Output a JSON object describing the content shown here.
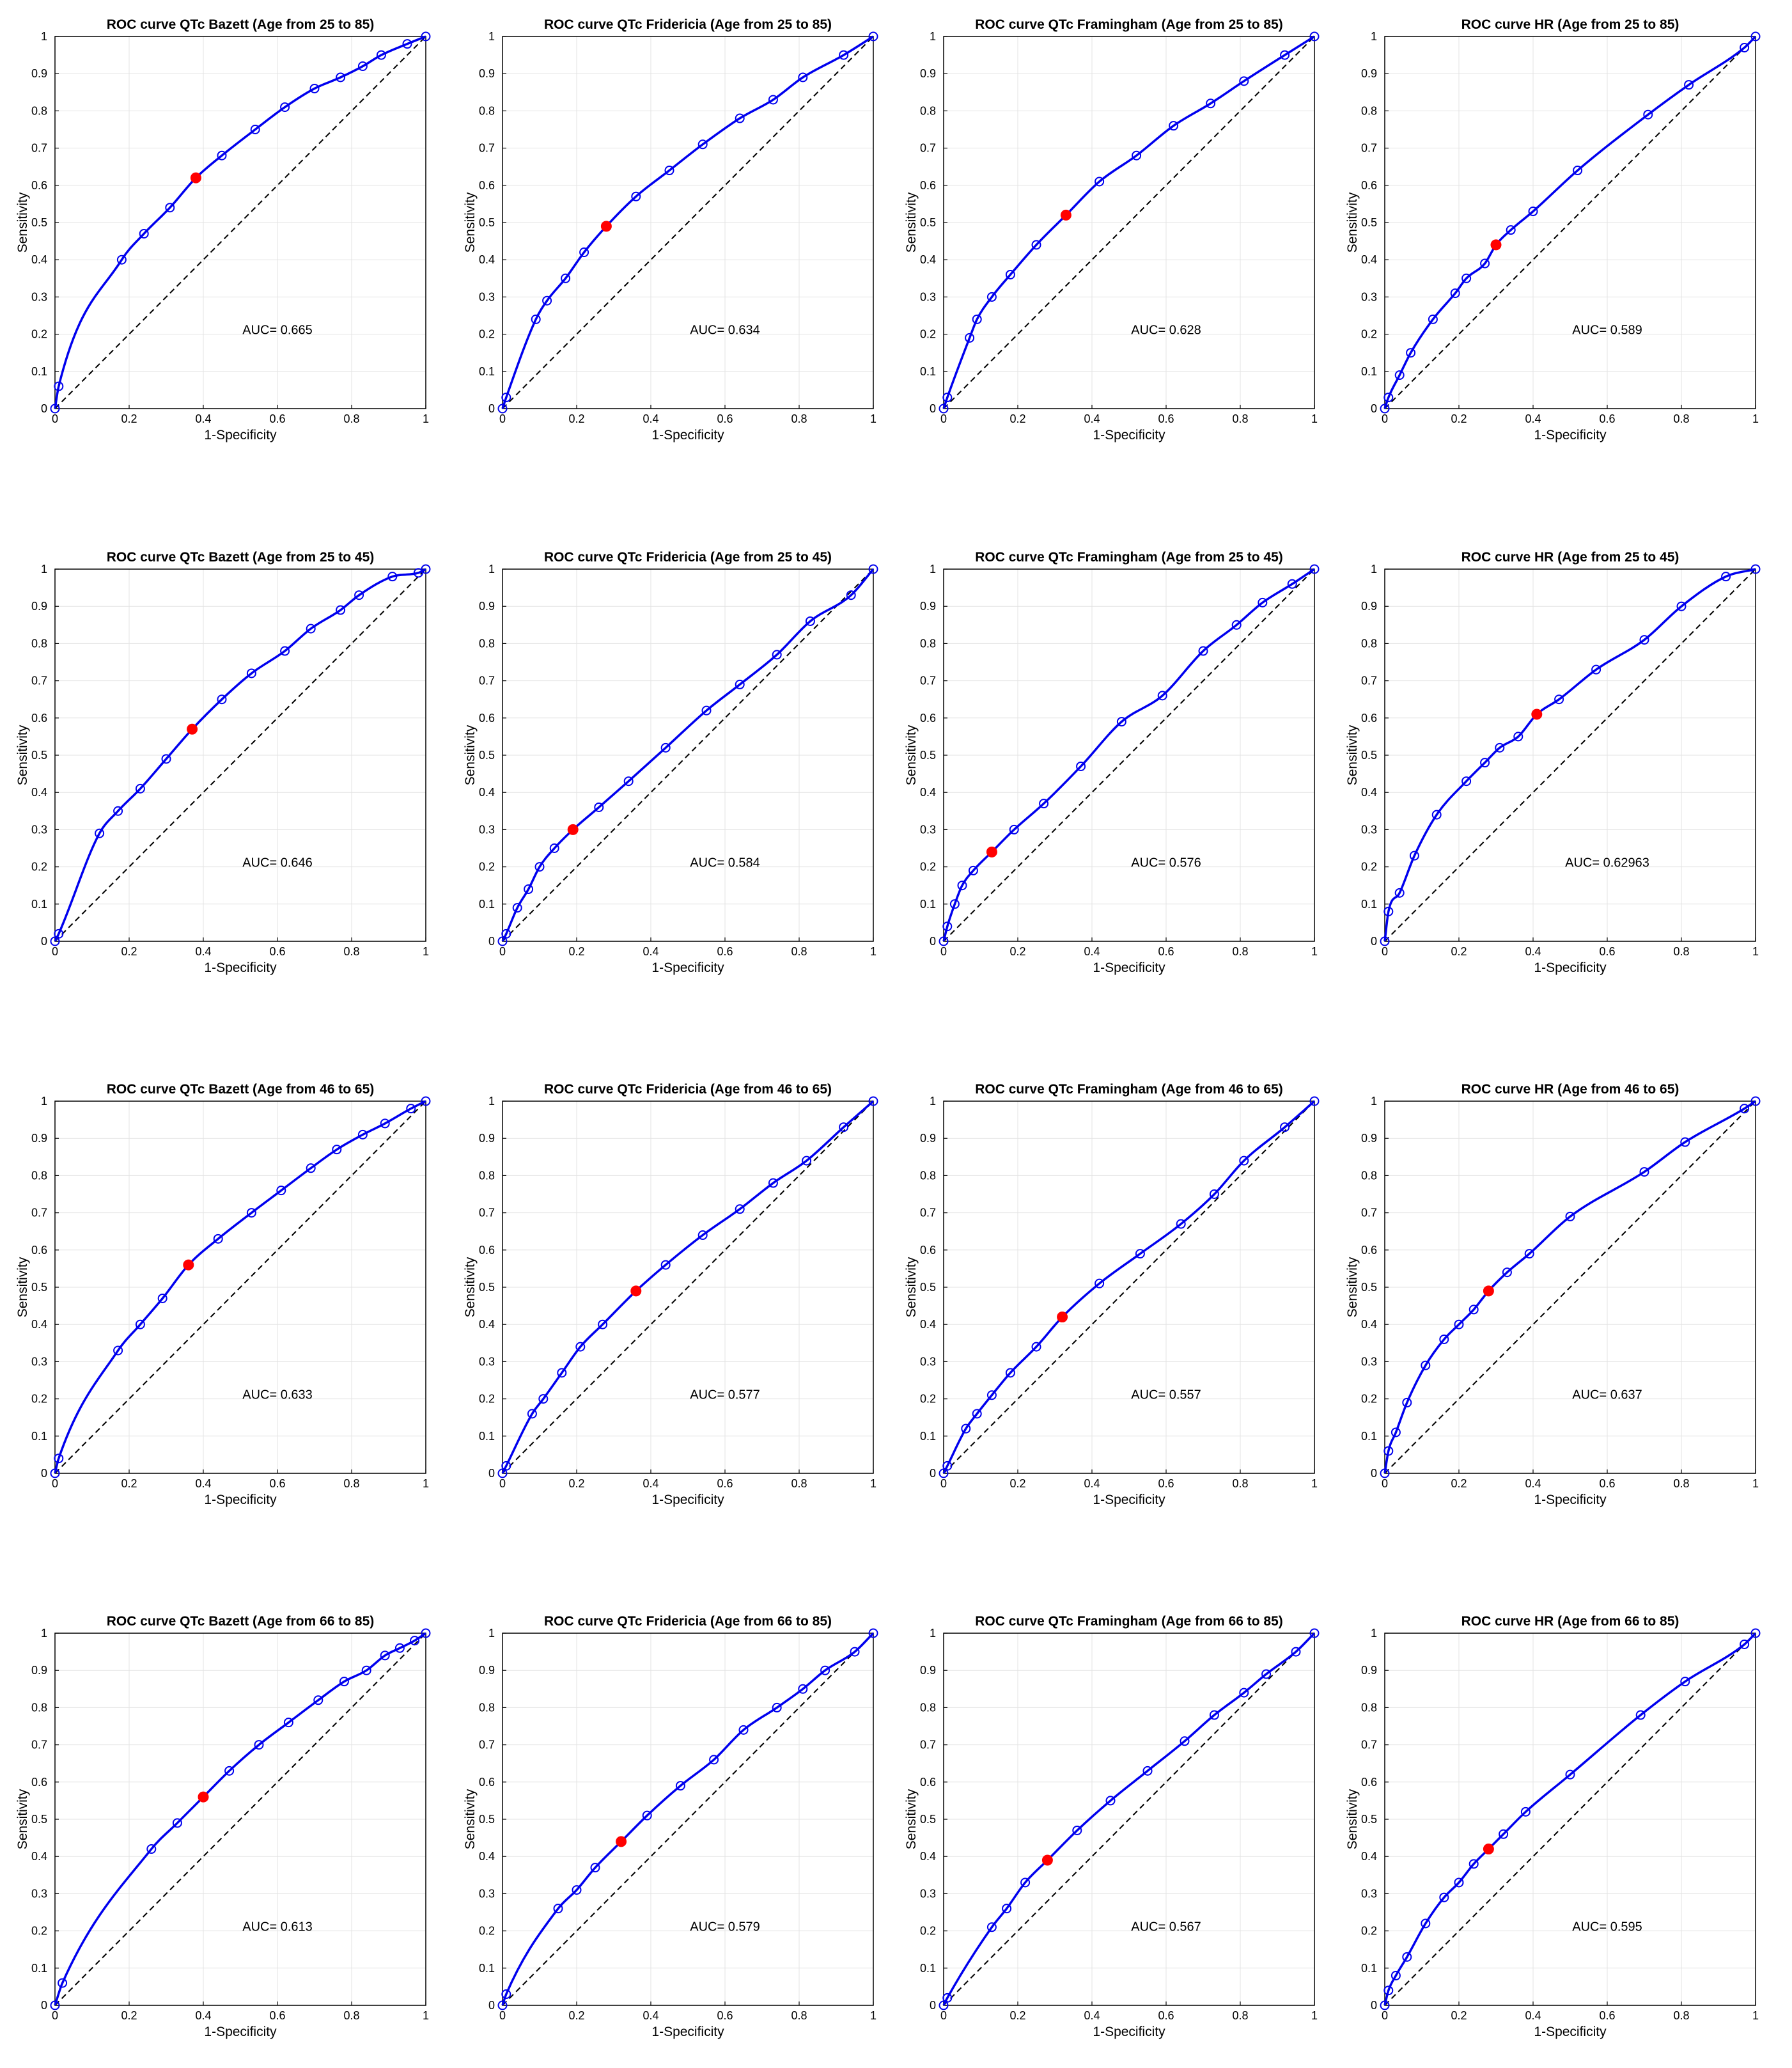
{
  "chart_data": [
    {
      "type": "line",
      "title": "ROC curve QTc Bazett (Age from  25 to 85)",
      "xlabel": "1-Specificity",
      "ylabel": "Sensitivity",
      "xlim": [
        0,
        1
      ],
      "ylim": [
        0,
        1
      ],
      "grid": true,
      "auc_label": "AUC= 0.665",
      "x": [
        0,
        0.01,
        0.18,
        0.24,
        0.31,
        0.38,
        0.45,
        0.54,
        0.62,
        0.7,
        0.77,
        0.83,
        0.88,
        0.95,
        1
      ],
      "y": [
        0,
        0.06,
        0.4,
        0.47,
        0.54,
        0.62,
        0.68,
        0.75,
        0.81,
        0.86,
        0.89,
        0.92,
        0.95,
        0.98,
        1
      ],
      "optimal_point": {
        "x": 0.38,
        "y": 0.62
      }
    },
    {
      "type": "line",
      "title": "ROC curve QTc Fridericia (Age from  25 to 85)",
      "xlabel": "1-Specificity",
      "ylabel": "Sensitivity",
      "xlim": [
        0,
        1
      ],
      "ylim": [
        0,
        1
      ],
      "grid": true,
      "auc_label": "AUC= 0.634",
      "x": [
        0,
        0.01,
        0.09,
        0.12,
        0.17,
        0.22,
        0.28,
        0.36,
        0.45,
        0.54,
        0.64,
        0.73,
        0.81,
        0.92,
        1
      ],
      "y": [
        0,
        0.03,
        0.24,
        0.29,
        0.35,
        0.42,
        0.49,
        0.57,
        0.64,
        0.71,
        0.78,
        0.83,
        0.89,
        0.95,
        1
      ],
      "optimal_point": {
        "x": 0.28,
        "y": 0.49
      }
    },
    {
      "type": "line",
      "title": "ROC curve QTc Framingham (Age from  25 to 85)",
      "xlabel": "1-Specificity",
      "ylabel": "Sensitivity",
      "xlim": [
        0,
        1
      ],
      "ylim": [
        0,
        1
      ],
      "grid": true,
      "auc_label": "AUC= 0.628",
      "x": [
        0,
        0.01,
        0.07,
        0.09,
        0.13,
        0.18,
        0.25,
        0.33,
        0.42,
        0.52,
        0.62,
        0.72,
        0.81,
        0.92,
        1
      ],
      "y": [
        0,
        0.03,
        0.19,
        0.24,
        0.3,
        0.36,
        0.44,
        0.52,
        0.61,
        0.68,
        0.76,
        0.82,
        0.88,
        0.95,
        1
      ],
      "optimal_point": {
        "x": 0.33,
        "y": 0.52
      }
    },
    {
      "type": "line",
      "title": "ROC curve HR (Age from  25 to 85)",
      "xlabel": "1-Specificity",
      "ylabel": "Sensitivity",
      "xlim": [
        0,
        1
      ],
      "ylim": [
        0,
        1
      ],
      "grid": true,
      "auc_label": "AUC= 0.589",
      "x": [
        0,
        0.01,
        0.04,
        0.07,
        0.13,
        0.19,
        0.22,
        0.27,
        0.3,
        0.34,
        0.4,
        0.52,
        0.71,
        0.82,
        0.97,
        1
      ],
      "y": [
        0,
        0.03,
        0.09,
        0.15,
        0.24,
        0.31,
        0.35,
        0.39,
        0.44,
        0.48,
        0.53,
        0.64,
        0.79,
        0.87,
        0.97,
        1
      ],
      "optimal_point": {
        "x": 0.3,
        "y": 0.44
      }
    },
    {
      "type": "line",
      "title": "ROC curve QTc Bazett (Age from  25 to 45)",
      "xlabel": "1-Specificity",
      "ylabel": "Sensitivity",
      "xlim": [
        0,
        1
      ],
      "ylim": [
        0,
        1
      ],
      "grid": true,
      "auc_label": "AUC= 0.646",
      "x": [
        0,
        0.01,
        0.12,
        0.17,
        0.23,
        0.3,
        0.37,
        0.45,
        0.53,
        0.62,
        0.69,
        0.77,
        0.82,
        0.91,
        0.98,
        1
      ],
      "y": [
        0,
        0.02,
        0.29,
        0.35,
        0.41,
        0.49,
        0.57,
        0.65,
        0.72,
        0.78,
        0.84,
        0.89,
        0.93,
        0.98,
        0.99,
        1
      ],
      "optimal_point": {
        "x": 0.37,
        "y": 0.57
      }
    },
    {
      "type": "line",
      "title": "ROC curve QTc Fridericia (Age from  25 to 45)",
      "xlabel": "1-Specificity",
      "ylabel": "Sensitivity",
      "xlim": [
        0,
        1
      ],
      "ylim": [
        0,
        1
      ],
      "grid": true,
      "auc_label": "AUC= 0.584",
      "x": [
        0,
        0.01,
        0.04,
        0.07,
        0.1,
        0.14,
        0.19,
        0.26,
        0.34,
        0.44,
        0.55,
        0.64,
        0.74,
        0.83,
        0.94,
        1
      ],
      "y": [
        0,
        0.02,
        0.09,
        0.14,
        0.2,
        0.25,
        0.3,
        0.36,
        0.43,
        0.52,
        0.62,
        0.69,
        0.77,
        0.86,
        0.93,
        1
      ],
      "optimal_point": {
        "x": 0.19,
        "y": 0.3
      }
    },
    {
      "type": "line",
      "title": "ROC curve QTc Framingham (Age from  25 to 45)",
      "xlabel": "1-Specificity",
      "ylabel": "Sensitivity",
      "xlim": [
        0,
        1
      ],
      "ylim": [
        0,
        1
      ],
      "grid": true,
      "auc_label": "AUC= 0.576",
      "x": [
        0,
        0.01,
        0.03,
        0.05,
        0.08,
        0.13,
        0.19,
        0.27,
        0.37,
        0.48,
        0.59,
        0.7,
        0.79,
        0.86,
        0.94,
        1
      ],
      "y": [
        0,
        0.04,
        0.1,
        0.15,
        0.19,
        0.24,
        0.3,
        0.37,
        0.47,
        0.59,
        0.66,
        0.78,
        0.85,
        0.91,
        0.96,
        1
      ],
      "optimal_point": {
        "x": 0.13,
        "y": 0.24
      }
    },
    {
      "type": "line",
      "title": "ROC curve HR (Age from  25 to 45)",
      "xlabel": "1-Specificity",
      "ylabel": "Sensitivity",
      "xlim": [
        0,
        1
      ],
      "ylim": [
        0,
        1
      ],
      "grid": true,
      "auc_label": "AUC= 0.62963",
      "x": [
        0,
        0.01,
        0.04,
        0.08,
        0.14,
        0.22,
        0.27,
        0.31,
        0.36,
        0.41,
        0.47,
        0.57,
        0.7,
        0.8,
        0.92,
        1
      ],
      "y": [
        0,
        0.08,
        0.13,
        0.23,
        0.34,
        0.43,
        0.48,
        0.52,
        0.55,
        0.61,
        0.65,
        0.73,
        0.81,
        0.9,
        0.98,
        1
      ],
      "optimal_point": {
        "x": 0.41,
        "y": 0.61
      }
    },
    {
      "type": "line",
      "title": "ROC curve QTc Bazett (Age from  46 to 65)",
      "xlabel": "1-Specificity",
      "ylabel": "Sensitivity",
      "xlim": [
        0,
        1
      ],
      "ylim": [
        0,
        1
      ],
      "grid": true,
      "auc_label": "AUC= 0.633",
      "x": [
        0,
        0.01,
        0.17,
        0.23,
        0.29,
        0.36,
        0.44,
        0.53,
        0.61,
        0.69,
        0.76,
        0.83,
        0.89,
        0.96,
        1
      ],
      "y": [
        0,
        0.04,
        0.33,
        0.4,
        0.47,
        0.56,
        0.63,
        0.7,
        0.76,
        0.82,
        0.87,
        0.91,
        0.94,
        0.98,
        1
      ],
      "optimal_point": {
        "x": 0.36,
        "y": 0.56
      }
    },
    {
      "type": "line",
      "title": "ROC curve QTc Fridericia (Age from  46 to 65)",
      "xlabel": "1-Specificity",
      "ylabel": "Sensitivity",
      "xlim": [
        0,
        1
      ],
      "ylim": [
        0,
        1
      ],
      "grid": true,
      "auc_label": "AUC= 0.577",
      "x": [
        0,
        0.01,
        0.08,
        0.11,
        0.16,
        0.21,
        0.27,
        0.36,
        0.44,
        0.54,
        0.64,
        0.73,
        0.82,
        0.92,
        1
      ],
      "y": [
        0,
        0.02,
        0.16,
        0.2,
        0.27,
        0.34,
        0.4,
        0.49,
        0.56,
        0.64,
        0.71,
        0.78,
        0.84,
        0.93,
        1
      ],
      "optimal_point": {
        "x": 0.36,
        "y": 0.49
      }
    },
    {
      "type": "line",
      "title": "ROC curve QTc Framingham (Age from  46 to 65)",
      "xlabel": "1-Specificity",
      "ylabel": "Sensitivity",
      "xlim": [
        0,
        1
      ],
      "ylim": [
        0,
        1
      ],
      "grid": true,
      "auc_label": "AUC= 0.557",
      "x": [
        0,
        0.01,
        0.06,
        0.09,
        0.13,
        0.18,
        0.25,
        0.32,
        0.42,
        0.53,
        0.64,
        0.73,
        0.81,
        0.92,
        1
      ],
      "y": [
        0,
        0.02,
        0.12,
        0.16,
        0.21,
        0.27,
        0.34,
        0.42,
        0.51,
        0.59,
        0.67,
        0.75,
        0.84,
        0.93,
        1
      ],
      "optimal_point": {
        "x": 0.32,
        "y": 0.42
      }
    },
    {
      "type": "line",
      "title": "ROC curve HR (Age from  46 to 65)",
      "xlabel": "1-Specificity",
      "ylabel": "Sensitivity",
      "xlim": [
        0,
        1
      ],
      "ylim": [
        0,
        1
      ],
      "grid": true,
      "auc_label": "AUC= 0.637",
      "x": [
        0,
        0.01,
        0.03,
        0.06,
        0.11,
        0.16,
        0.2,
        0.24,
        0.28,
        0.33,
        0.39,
        0.5,
        0.7,
        0.81,
        0.97,
        1
      ],
      "y": [
        0,
        0.06,
        0.11,
        0.19,
        0.29,
        0.36,
        0.4,
        0.44,
        0.49,
        0.54,
        0.59,
        0.69,
        0.81,
        0.89,
        0.98,
        1
      ],
      "optimal_point": {
        "x": 0.28,
        "y": 0.49
      }
    },
    {
      "type": "line",
      "title": "ROC curve QTc Bazett (Age from  66 to 85)",
      "xlabel": "1-Specificity",
      "ylabel": "Sensitivity",
      "xlim": [
        0,
        1
      ],
      "ylim": [
        0,
        1
      ],
      "grid": true,
      "auc_label": "AUC= 0.613",
      "x": [
        0,
        0.02,
        0.26,
        0.33,
        0.4,
        0.47,
        0.55,
        0.63,
        0.71,
        0.78,
        0.84,
        0.89,
        0.93,
        0.97,
        1
      ],
      "y": [
        0,
        0.06,
        0.42,
        0.49,
        0.56,
        0.63,
        0.7,
        0.76,
        0.82,
        0.87,
        0.9,
        0.94,
        0.96,
        0.98,
        1
      ],
      "optimal_point": {
        "x": 0.4,
        "y": 0.56
      }
    },
    {
      "type": "line",
      "title": "ROC curve QTc Fridericia (Age from  66 to 85)",
      "xlabel": "1-Specificity",
      "ylabel": "Sensitivity",
      "xlim": [
        0,
        1
      ],
      "ylim": [
        0,
        1
      ],
      "grid": true,
      "auc_label": "AUC= 0.579",
      "x": [
        0,
        0.01,
        0.15,
        0.2,
        0.25,
        0.32,
        0.39,
        0.48,
        0.57,
        0.65,
        0.74,
        0.81,
        0.87,
        0.95,
        1
      ],
      "y": [
        0,
        0.03,
        0.26,
        0.31,
        0.37,
        0.44,
        0.51,
        0.59,
        0.66,
        0.74,
        0.8,
        0.85,
        0.9,
        0.95,
        1
      ],
      "optimal_point": {
        "x": 0.32,
        "y": 0.44
      }
    },
    {
      "type": "line",
      "title": "ROC curve QTc Framingham (Age from  66 to 85)",
      "xlabel": "1-Specificity",
      "ylabel": "Sensitivity",
      "xlim": [
        0,
        1
      ],
      "ylim": [
        0,
        1
      ],
      "grid": true,
      "auc_label": "AUC= 0.567",
      "x": [
        0,
        0.01,
        0.13,
        0.17,
        0.22,
        0.28,
        0.36,
        0.45,
        0.55,
        0.65,
        0.73,
        0.81,
        0.87,
        0.95,
        1
      ],
      "y": [
        0,
        0.02,
        0.21,
        0.26,
        0.33,
        0.39,
        0.47,
        0.55,
        0.63,
        0.71,
        0.78,
        0.84,
        0.89,
        0.95,
        1
      ],
      "optimal_point": {
        "x": 0.28,
        "y": 0.39
      }
    },
    {
      "type": "line",
      "title": "ROC curve HR (Age from  66 to 85)",
      "xlabel": "1-Specificity",
      "ylabel": "Sensitivity",
      "xlim": [
        0,
        1
      ],
      "ylim": [
        0,
        1
      ],
      "grid": true,
      "auc_label": "AUC= 0.595",
      "x": [
        0,
        0.01,
        0.03,
        0.06,
        0.11,
        0.16,
        0.2,
        0.24,
        0.28,
        0.32,
        0.38,
        0.5,
        0.69,
        0.81,
        0.97,
        1
      ],
      "y": [
        0,
        0.04,
        0.08,
        0.13,
        0.22,
        0.29,
        0.33,
        0.38,
        0.42,
        0.46,
        0.52,
        0.62,
        0.78,
        0.87,
        0.97,
        1
      ],
      "optimal_point": {
        "x": 0.28,
        "y": 0.42
      }
    }
  ]
}
